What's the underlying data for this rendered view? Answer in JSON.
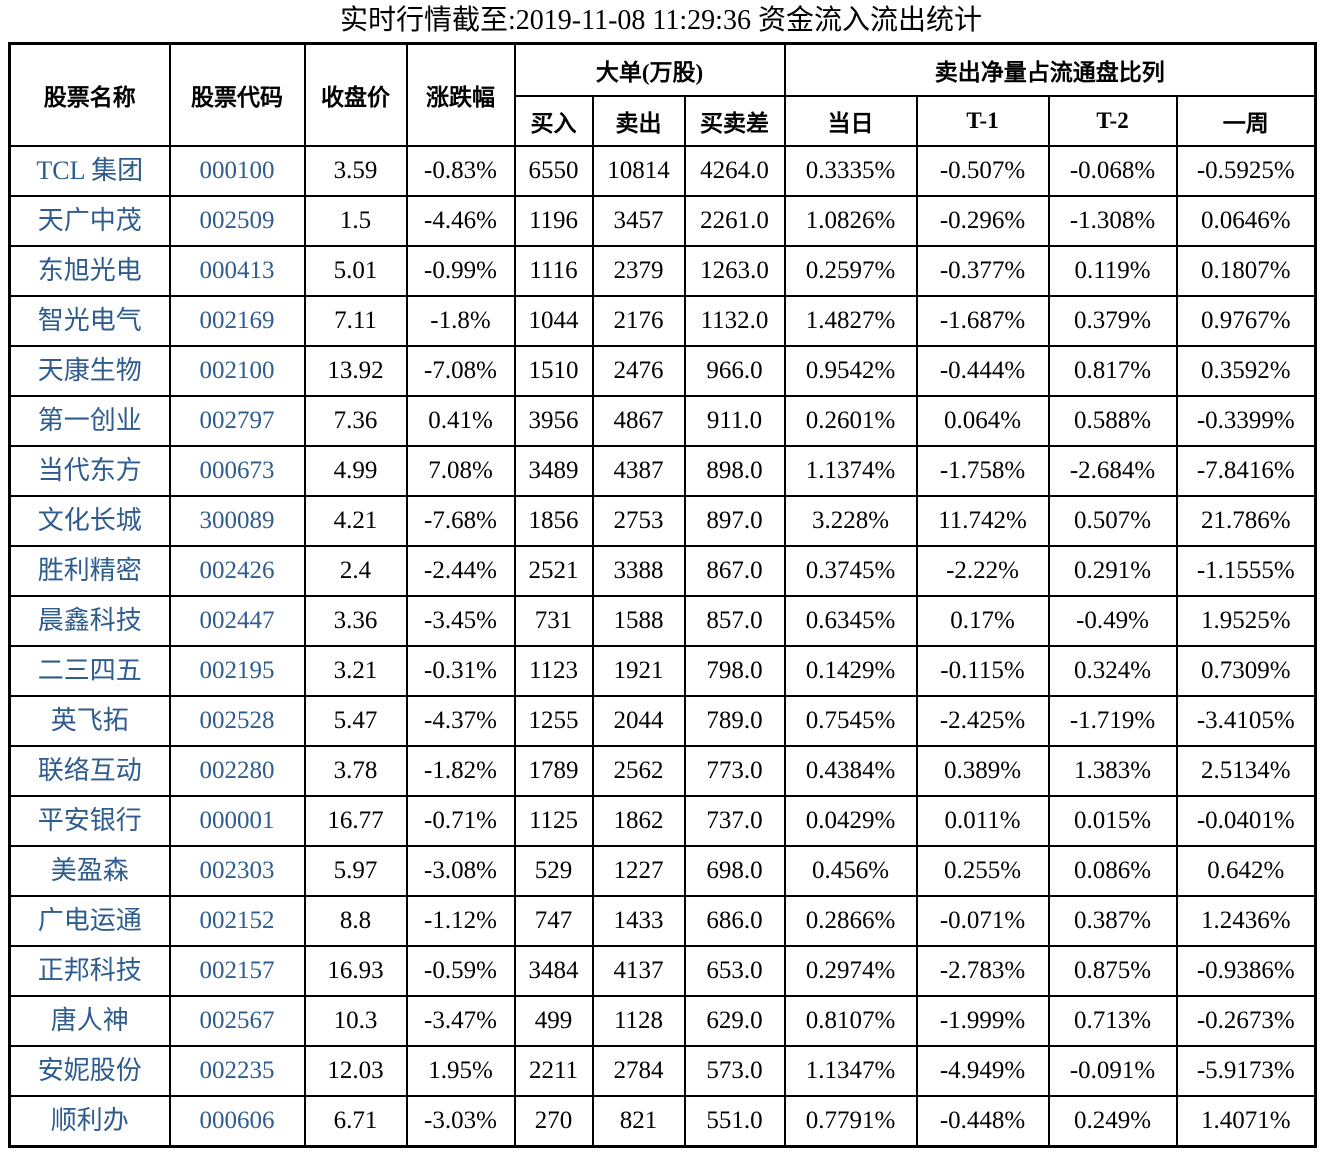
{
  "chart_data": {
    "type": "table",
    "title": "实时行情截至:2019-11-08 11:29:36 资金流入流出统计",
    "headers": {
      "name": "股票名称",
      "code": "股票代码",
      "close": "收盘价",
      "change": "涨跌幅",
      "big_order_group": "大单(万股)",
      "buy": "买入",
      "sell": "卖出",
      "diff": "买卖差",
      "net_sell_group": "卖出净量占流通盘比列",
      "day": "当日",
      "t1": "T-1",
      "t2": "T-2",
      "week": "一周"
    },
    "rows": [
      [
        "TCL 集团",
        "000100",
        "3.59",
        "-0.83%",
        "6550",
        "10814",
        "4264.0",
        "0.3335%",
        "-0.507%",
        "-0.068%",
        "-0.5925%"
      ],
      [
        "天广中茂",
        "002509",
        "1.5",
        "-4.46%",
        "1196",
        "3457",
        "2261.0",
        "1.0826%",
        "-0.296%",
        "-1.308%",
        "0.0646%"
      ],
      [
        "东旭光电",
        "000413",
        "5.01",
        "-0.99%",
        "1116",
        "2379",
        "1263.0",
        "0.2597%",
        "-0.377%",
        "0.119%",
        "0.1807%"
      ],
      [
        "智光电气",
        "002169",
        "7.11",
        "-1.8%",
        "1044",
        "2176",
        "1132.0",
        "1.4827%",
        "-1.687%",
        "0.379%",
        "0.9767%"
      ],
      [
        "天康生物",
        "002100",
        "13.92",
        "-7.08%",
        "1510",
        "2476",
        "966.0",
        "0.9542%",
        "-0.444%",
        "0.817%",
        "0.3592%"
      ],
      [
        "第一创业",
        "002797",
        "7.36",
        "0.41%",
        "3956",
        "4867",
        "911.0",
        "0.2601%",
        "0.064%",
        "0.588%",
        "-0.3399%"
      ],
      [
        "当代东方",
        "000673",
        "4.99",
        "7.08%",
        "3489",
        "4387",
        "898.0",
        "1.1374%",
        "-1.758%",
        "-2.684%",
        "-7.8416%"
      ],
      [
        "文化长城",
        "300089",
        "4.21",
        "-7.68%",
        "1856",
        "2753",
        "897.0",
        "3.228%",
        "11.742%",
        "0.507%",
        "21.786%"
      ],
      [
        "胜利精密",
        "002426",
        "2.4",
        "-2.44%",
        "2521",
        "3388",
        "867.0",
        "0.3745%",
        "-2.22%",
        "0.291%",
        "-1.1555%"
      ],
      [
        "晨鑫科技",
        "002447",
        "3.36",
        "-3.45%",
        "731",
        "1588",
        "857.0",
        "0.6345%",
        "0.17%",
        "-0.49%",
        "1.9525%"
      ],
      [
        "二三四五",
        "002195",
        "3.21",
        "-0.31%",
        "1123",
        "1921",
        "798.0",
        "0.1429%",
        "-0.115%",
        "0.324%",
        "0.7309%"
      ],
      [
        "英飞拓",
        "002528",
        "5.47",
        "-4.37%",
        "1255",
        "2044",
        "789.0",
        "0.7545%",
        "-2.425%",
        "-1.719%",
        "-3.4105%"
      ],
      [
        "联络互动",
        "002280",
        "3.78",
        "-1.82%",
        "1789",
        "2562",
        "773.0",
        "0.4384%",
        "0.389%",
        "1.383%",
        "2.5134%"
      ],
      [
        "平安银行",
        "000001",
        "16.77",
        "-0.71%",
        "1125",
        "1862",
        "737.0",
        "0.0429%",
        "0.011%",
        "0.015%",
        "-0.0401%"
      ],
      [
        "美盈森",
        "002303",
        "5.97",
        "-3.08%",
        "529",
        "1227",
        "698.0",
        "0.456%",
        "0.255%",
        "0.086%",
        "0.642%"
      ],
      [
        "广电运通",
        "002152",
        "8.8",
        "-1.12%",
        "747",
        "1433",
        "686.0",
        "0.2866%",
        "-0.071%",
        "0.387%",
        "1.2436%"
      ],
      [
        "正邦科技",
        "002157",
        "16.93",
        "-0.59%",
        "3484",
        "4137",
        "653.0",
        "0.2974%",
        "-2.783%",
        "0.875%",
        "-0.9386%"
      ],
      [
        "唐人神",
        "002567",
        "10.3",
        "-3.47%",
        "499",
        "1128",
        "629.0",
        "0.8107%",
        "-1.999%",
        "0.713%",
        "-0.2673%"
      ],
      [
        "安妮股份",
        "002235",
        "12.03",
        "1.95%",
        "2211",
        "2784",
        "573.0",
        "1.1347%",
        "-4.949%",
        "-0.091%",
        "-5.9173%"
      ],
      [
        "顺利办",
        "000606",
        "6.71",
        "-3.03%",
        "270",
        "821",
        "551.0",
        "0.7791%",
        "-0.448%",
        "0.249%",
        "1.4071%"
      ]
    ]
  },
  "colors": {
    "stock_link_blue": "#2e5c8e",
    "border_black": "#000000"
  }
}
